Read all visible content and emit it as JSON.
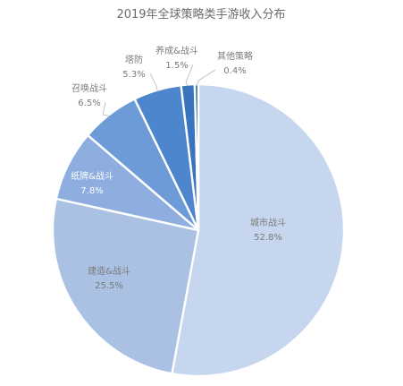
{
  "chart_data": {
    "type": "pie",
    "title": "2019年全球策略类手游收入分布",
    "slices": [
      {
        "label": "城市战斗",
        "value": 52.8,
        "display": "52.8%",
        "color": "#c6d6ee",
        "text_color": "#7a7a7a"
      },
      {
        "label": "建造&战斗",
        "value": 25.5,
        "display": "25.5%",
        "color": "#aac1e3",
        "text_color": "#7a7a7a"
      },
      {
        "label": "纸牌&战斗",
        "value": 7.8,
        "display": "7.8%",
        "color": "#8daedf",
        "text_color": "#ffffff"
      },
      {
        "label": "召唤战斗",
        "value": 6.5,
        "display": "6.5%",
        "color": "#6d9bd8",
        "text_color": "#7a7a7a"
      },
      {
        "label": "塔防",
        "value": 5.3,
        "display": "5.3%",
        "color": "#4d86cd",
        "text_color": "#7a7a7a"
      },
      {
        "label": "养成&战斗",
        "value": 1.5,
        "display": "1.5%",
        "color": "#3a74bf",
        "text_color": "#7a7a7a"
      },
      {
        "label": "其他策略",
        "value": 0.4,
        "display": "0.4%",
        "color": "#2c5fa3",
        "text_color": "#7a7a7a"
      }
    ]
  }
}
